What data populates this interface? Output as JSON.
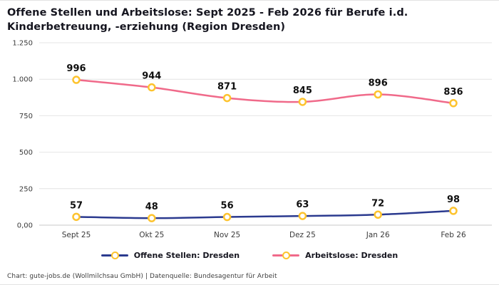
{
  "chart_data": {
    "type": "line",
    "title": "Offene Stellen und Arbeitslose: Sept 2025 - Feb 2026 für Berufe i.d. Kinderbetreuung, -erziehung (Region Dresden)",
    "categories": [
      "Sept 25",
      "Okt 25",
      "Nov 25",
      "Dez 25",
      "Jan 26",
      "Feb 26"
    ],
    "series": [
      {
        "name": "Offene Stellen: Dresden",
        "values": [
          57,
          48,
          56,
          63,
          72,
          98
        ],
        "color": "#2b3a8f"
      },
      {
        "name": "Arbeitslose: Dresden",
        "values": [
          996,
          944,
          871,
          845,
          896,
          836
        ],
        "color": "#f06a8a"
      }
    ],
    "marker": {
      "fill": "#ffffff",
      "stroke": "#fdc32e"
    },
    "y_ticks": [
      {
        "value": 0,
        "label": "0,00"
      },
      {
        "value": 250,
        "label": "250"
      },
      {
        "value": 500,
        "label": "500"
      },
      {
        "value": 750,
        "label": "750"
      },
      {
        "value": 1000,
        "label": "1.000"
      },
      {
        "value": 1250,
        "label": "1.250"
      }
    ],
    "ylim": [
      0,
      1250
    ],
    "grid": true,
    "legend_position": "bottom",
    "data_labels": true,
    "colors": {
      "grid": "#e4e4e4",
      "zero_line": "#c9c9c9",
      "tick_text": "#3a3a3a",
      "label_text": "#0f0f0f"
    }
  },
  "footer": {
    "text": "Chart: gute-jobs.de (Wollmilchsau GmbH) | Datenquelle: Bundesagentur für Arbeit"
  }
}
